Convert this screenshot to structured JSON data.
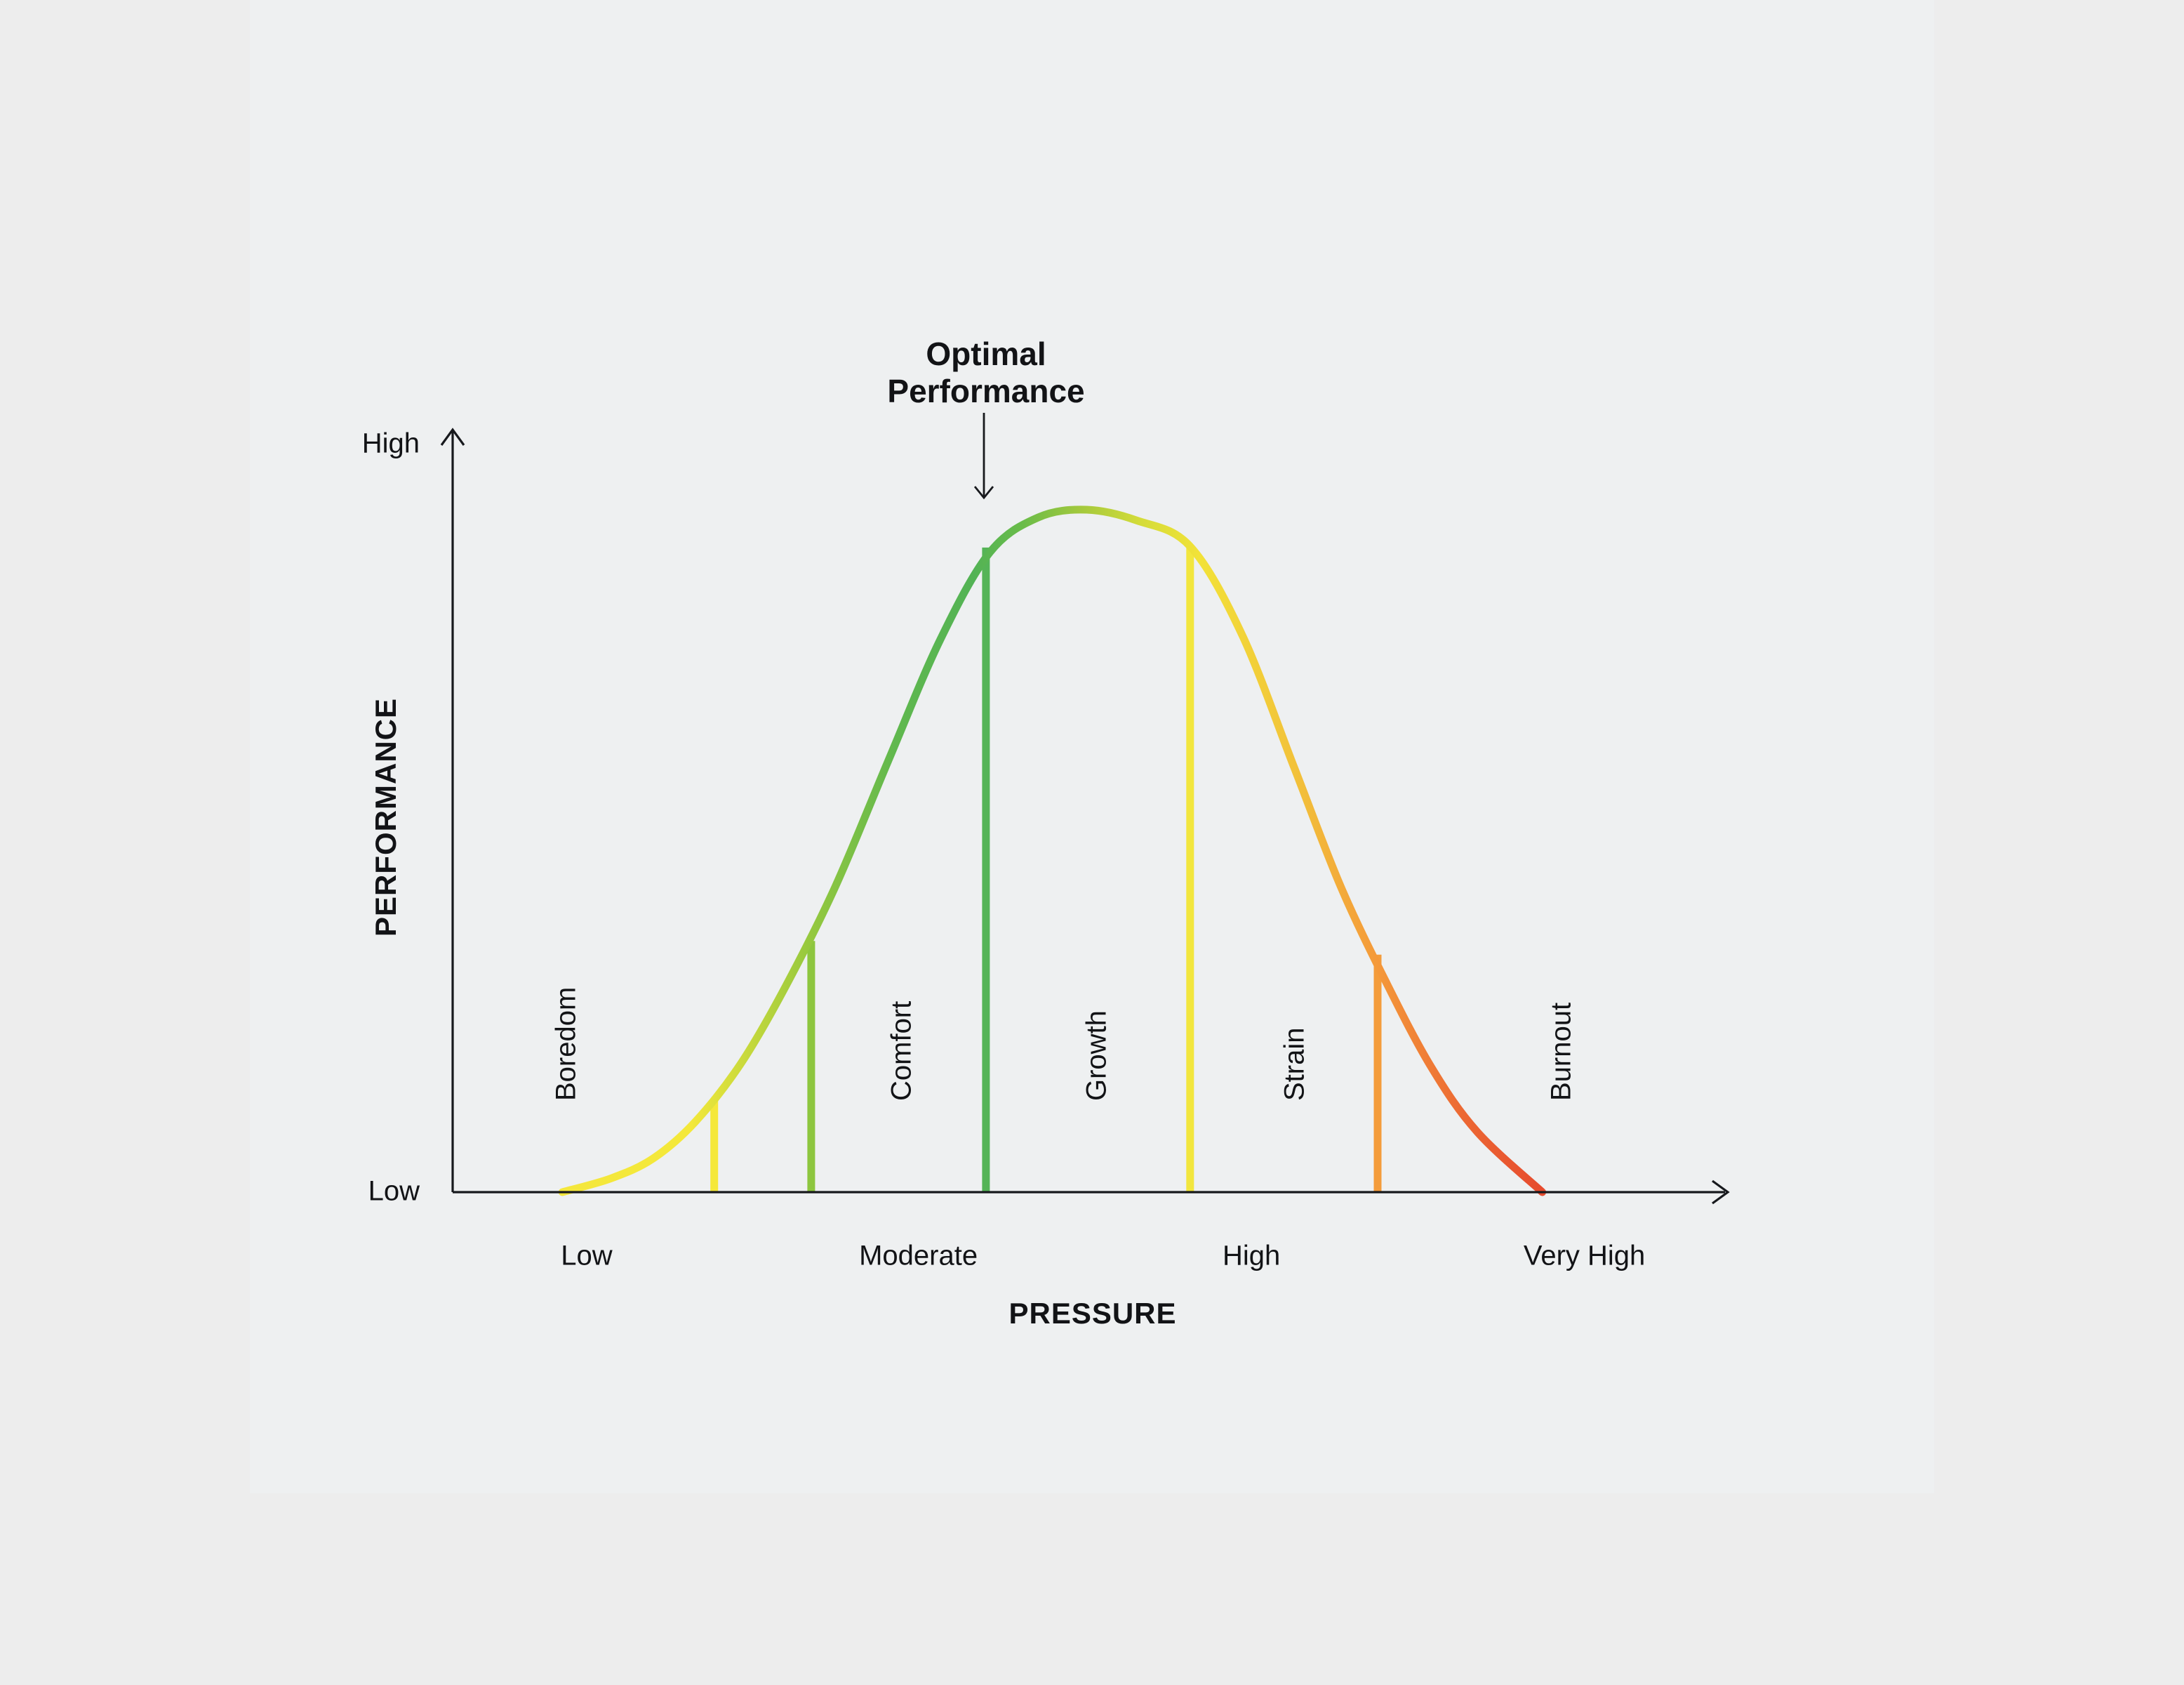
{
  "page": {
    "background": "#EDEDED",
    "panel_background": "#EEF0F1"
  },
  "chart_data": {
    "type": "line",
    "xlabel": "PRESSURE",
    "ylabel": "PERFORMANCE",
    "y_tick_labels": {
      "top": "High",
      "bottom": "Low"
    },
    "x_ticks": [
      {
        "label": "Low",
        "pressure": 10.5
      },
      {
        "label": "Moderate",
        "pressure": 36.5
      },
      {
        "label": "High",
        "pressure": 62.6
      },
      {
        "label": "Very High",
        "pressure": 88.7
      }
    ],
    "annotation": {
      "text": "Optimal Performance",
      "lines": [
        "Optimal",
        "Performance"
      ]
    },
    "x_range": [
      0,
      100
    ],
    "y_range": [
      0,
      100
    ],
    "grid": false,
    "legend": false,
    "curve_points": [
      {
        "pressure": 8.6,
        "performance": 0.0
      },
      {
        "pressure": 12.4,
        "performance": 1.8
      },
      {
        "pressure": 15.7,
        "performance": 4.4
      },
      {
        "pressure": 19.0,
        "performance": 9.2
      },
      {
        "pressure": 22.6,
        "performance": 16.9
      },
      {
        "pressure": 26.1,
        "performance": 27.0
      },
      {
        "pressure": 30.0,
        "performance": 40.1
      },
      {
        "pressure": 34.1,
        "performance": 56.4
      },
      {
        "pressure": 38.2,
        "performance": 72.4
      },
      {
        "pressure": 42.1,
        "performance": 83.9
      },
      {
        "pressure": 45.9,
        "performance": 88.5
      },
      {
        "pressure": 49.7,
        "performance": 89.5
      },
      {
        "pressure": 53.6,
        "performance": 88.1
      },
      {
        "pressure": 57.8,
        "performance": 84.7
      },
      {
        "pressure": 61.9,
        "performance": 73.0
      },
      {
        "pressure": 66.0,
        "performance": 55.5
      },
      {
        "pressure": 69.6,
        "performance": 40.1
      },
      {
        "pressure": 73.2,
        "performance": 27.4
      },
      {
        "pressure": 76.7,
        "performance": 16.4
      },
      {
        "pressure": 80.3,
        "performance": 7.9
      },
      {
        "pressure": 85.4,
        "performance": 0.0
      }
    ],
    "zone_labels": [
      {
        "text": "Boredom",
        "pressure": 8.9
      },
      {
        "text": "Comfort",
        "pressure": 35.2
      },
      {
        "text": "Growth",
        "pressure": 50.5
      },
      {
        "text": "Strain",
        "pressure": 66.0
      },
      {
        "text": "Burnout",
        "pressure": 86.9
      }
    ],
    "dividers": [
      {
        "pressure": 20.5,
        "top_performance": 12.7,
        "color": "#F5E83A"
      },
      {
        "pressure": 28.1,
        "top_performance": 33.4,
        "color": "#8DC63F"
      },
      {
        "pressure": 41.8,
        "top_performance": 85.0,
        "color": "#55B457"
      },
      {
        "pressure": 57.8,
        "top_performance": 85.0,
        "color": "#F2E63E"
      },
      {
        "pressure": 72.5,
        "top_performance": 31.6,
        "color": "#F49C3B"
      }
    ],
    "gradient_stops": [
      {
        "offset": 0.0,
        "color": "#F4E73C"
      },
      {
        "offset": 0.13,
        "color": "#F4E83A"
      },
      {
        "offset": 0.25,
        "color": "#97C93E"
      },
      {
        "offset": 0.34,
        "color": "#60B84E"
      },
      {
        "offset": 0.42,
        "color": "#53B355"
      },
      {
        "offset": 0.47,
        "color": "#6ABC49"
      },
      {
        "offset": 0.53,
        "color": "#A4C93D"
      },
      {
        "offset": 0.59,
        "color": "#D4DC39"
      },
      {
        "offset": 0.65,
        "color": "#F2E238"
      },
      {
        "offset": 0.75,
        "color": "#F2C13A"
      },
      {
        "offset": 0.83,
        "color": "#F49A3A"
      },
      {
        "offset": 0.92,
        "color": "#EC6833"
      },
      {
        "offset": 1.0,
        "color": "#E64B2E"
      }
    ],
    "axis_color": "#17191D",
    "text_color": "#121316"
  }
}
